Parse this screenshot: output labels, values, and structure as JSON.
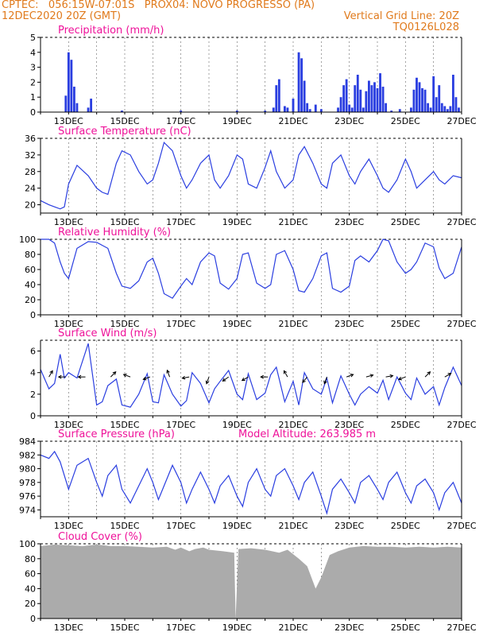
{
  "header": {
    "line1_left": "CPTEC:   056:15W-07:01S   PROX04: NOVO PROGRESSO (PA)",
    "line2_left": "12DEC2020 20Z (GMT)",
    "line2_right": "Vertical Grid Line: 20Z",
    "line3_right": "TQ0126L028"
  },
  "colors": {
    "header": "#e07a1c",
    "title": "#ee1199",
    "series": "#2a3ee0",
    "cloud": "#ababab",
    "arrow": "#000000"
  },
  "chart_data": [
    {
      "type": "bar",
      "title": "Precipitation (mm/h)",
      "xlim": [
        0,
        15
      ],
      "ylim": [
        0,
        5
      ],
      "yticks": [
        0,
        1,
        2,
        3,
        4,
        5
      ],
      "xtick_labels": [
        "13DEC",
        "15DEC",
        "17DEC",
        "19DEC",
        "21DEC",
        "23DEC",
        "25DEC",
        "27DEC"
      ],
      "x": [
        0.9,
        1.0,
        1.1,
        1.2,
        1.3,
        1.7,
        1.8,
        2.9,
        5.0,
        7.0,
        8.0,
        8.3,
        8.4,
        8.5,
        8.7,
        8.8,
        9.0,
        9.2,
        9.3,
        9.4,
        9.5,
        9.6,
        9.8,
        10.0,
        10.6,
        10.7,
        10.8,
        10.9,
        11.0,
        11.1,
        11.2,
        11.3,
        11.4,
        11.5,
        11.6,
        11.7,
        11.8,
        11.9,
        12.0,
        12.1,
        12.2,
        12.3,
        12.5,
        12.8,
        13.2,
        13.3,
        13.4,
        13.5,
        13.6,
        13.7,
        13.8,
        13.9,
        14.0,
        14.1,
        14.2,
        14.3,
        14.4,
        14.5,
        14.6,
        14.7,
        14.8,
        14.9
      ],
      "values": [
        1.1,
        4.0,
        3.5,
        1.7,
        0.6,
        0.3,
        0.9,
        0.1,
        0.1,
        0.1,
        0.1,
        0.3,
        1.8,
        2.2,
        0.4,
        0.3,
        0.9,
        4.0,
        3.6,
        2.1,
        0.6,
        0.2,
        0.5,
        0.2,
        0.3,
        1.0,
        1.8,
        2.2,
        0.5,
        0.3,
        1.8,
        2.5,
        1.5,
        0.3,
        1.4,
        2.1,
        1.8,
        2.0,
        1.6,
        2.6,
        1.7,
        0.6,
        0.1,
        0.2,
        0.3,
        1.5,
        2.3,
        2.0,
        1.6,
        1.5,
        0.6,
        0.3,
        2.4,
        1.0,
        1.8,
        0.6,
        0.4,
        0.2,
        0.4,
        2.5,
        1.0,
        0.3
      ]
    },
    {
      "type": "line",
      "title": "Surface Temperature (nC)",
      "xlim": [
        0,
        15
      ],
      "ylim": [
        18,
        36
      ],
      "yticks": [
        20,
        24,
        28,
        32,
        36
      ],
      "xtick_labels": [
        "13DEC",
        "15DEC",
        "17DEC",
        "19DEC",
        "21DEC",
        "23DEC",
        "25DEC",
        "27DEC"
      ],
      "x": [
        0,
        0.3,
        0.5,
        0.7,
        0.85,
        1.0,
        1.3,
        1.7,
        2.0,
        2.2,
        2.4,
        2.7,
        2.9,
        3.2,
        3.5,
        3.8,
        4.0,
        4.2,
        4.4,
        4.7,
        5.0,
        5.2,
        5.4,
        5.7,
        6.0,
        6.2,
        6.4,
        6.7,
        7.0,
        7.2,
        7.4,
        7.7,
        8.0,
        8.2,
        8.4,
        8.7,
        9.0,
        9.2,
        9.4,
        9.7,
        10.0,
        10.2,
        10.4,
        10.7,
        11.0,
        11.2,
        11.4,
        11.7,
        12.0,
        12.2,
        12.4,
        12.7,
        13.0,
        13.2,
        13.4,
        13.7,
        14.0,
        14.2,
        14.4,
        14.7,
        15.0
      ],
      "values": [
        21,
        20,
        19.5,
        19,
        19.5,
        25,
        29.5,
        27,
        24,
        23,
        22.5,
        30,
        33,
        32,
        28,
        25,
        26,
        30,
        35,
        33,
        27,
        24,
        26,
        30,
        32,
        26,
        24,
        27,
        32,
        31,
        25,
        24,
        29,
        33,
        28,
        24,
        26,
        32,
        34,
        30,
        25,
        24,
        30,
        32,
        27,
        25,
        28,
        31,
        27,
        24,
        23,
        26,
        31,
        28,
        24,
        26,
        28,
        26,
        25,
        27,
        26.5
      ]
    },
    {
      "type": "line",
      "title": "Relative Humidity (%)",
      "xlim": [
        0,
        15
      ],
      "ylim": [
        0,
        100
      ],
      "yticks": [
        0,
        20,
        40,
        60,
        80,
        100
      ],
      "xtick_labels": [
        "13DEC",
        "15DEC",
        "17DEC",
        "19DEC",
        "21DEC",
        "23DEC",
        "25DEC",
        "27DEC"
      ],
      "x": [
        0,
        0.3,
        0.5,
        0.7,
        0.85,
        1.0,
        1.3,
        1.7,
        2.0,
        2.2,
        2.4,
        2.7,
        2.9,
        3.2,
        3.5,
        3.8,
        4.0,
        4.2,
        4.4,
        4.7,
        5.0,
        5.2,
        5.4,
        5.7,
        6.0,
        6.2,
        6.4,
        6.7,
        7.0,
        7.2,
        7.4,
        7.7,
        8.0,
        8.2,
        8.4,
        8.7,
        9.0,
        9.2,
        9.4,
        9.7,
        10.0,
        10.2,
        10.4,
        10.7,
        11.0,
        11.2,
        11.4,
        11.7,
        12.0,
        12.2,
        12.4,
        12.7,
        13.0,
        13.2,
        13.4,
        13.7,
        14.0,
        14.2,
        14.4,
        14.7,
        15.0
      ],
      "values": [
        100,
        100,
        95,
        70,
        55,
        48,
        88,
        97,
        96,
        92,
        88,
        55,
        38,
        35,
        45,
        70,
        75,
        55,
        28,
        22,
        38,
        48,
        40,
        70,
        82,
        78,
        42,
        34,
        48,
        80,
        82,
        42,
        35,
        40,
        80,
        85,
        60,
        32,
        30,
        48,
        78,
        82,
        35,
        30,
        38,
        72,
        78,
        70,
        85,
        100,
        98,
        70,
        55,
        60,
        70,
        95,
        90,
        62,
        48,
        55,
        90
      ]
    },
    {
      "type": "line",
      "title": "Surface Wind (m/s)",
      "xlim": [
        0,
        15
      ],
      "ylim": [
        0,
        7
      ],
      "yticks": [
        0,
        2,
        4,
        6
      ],
      "xtick_labels": [
        "13DEC",
        "15DEC",
        "17DEC",
        "19DEC",
        "21DEC",
        "23DEC",
        "25DEC",
        "27DEC"
      ],
      "x": [
        0,
        0.3,
        0.5,
        0.7,
        0.85,
        1.0,
        1.3,
        1.7,
        2.0,
        2.2,
        2.4,
        2.7,
        2.9,
        3.2,
        3.5,
        3.8,
        4.0,
        4.2,
        4.4,
        4.7,
        5.0,
        5.2,
        5.4,
        5.7,
        6.0,
        6.2,
        6.4,
        6.7,
        7.0,
        7.2,
        7.4,
        7.7,
        8.0,
        8.2,
        8.4,
        8.7,
        9.0,
        9.2,
        9.4,
        9.7,
        10.0,
        10.2,
        10.4,
        10.7,
        11.0,
        11.2,
        11.4,
        11.7,
        12.0,
        12.2,
        12.4,
        12.7,
        13.0,
        13.2,
        13.4,
        13.7,
        14.0,
        14.2,
        14.4,
        14.7,
        15.0
      ],
      "values": [
        4.3,
        2.5,
        3,
        5.7,
        3.5,
        4,
        3.5,
        6.7,
        1,
        1.3,
        2.8,
        3.4,
        1,
        0.8,
        2,
        3.9,
        1.3,
        1.2,
        3.8,
        2,
        0.9,
        1.4,
        4,
        3,
        1.2,
        2.5,
        3.2,
        4.2,
        2,
        1.5,
        3.9,
        1.5,
        2.1,
        3.8,
        4.5,
        1.3,
        3.2,
        1,
        4,
        2.5,
        2,
        3.5,
        1.2,
        3.7,
        2,
        1,
        2,
        2.7,
        2.1,
        3.3,
        1.5,
        3.6,
        2.1,
        1.5,
        3.5,
        2,
        2.7,
        1,
        2.6,
        4.5,
        2.8
      ],
      "arrows_x": [
        0.3,
        0.9,
        1.6,
        2.5,
        3.2,
        3.9,
        4.6,
        5.3,
        6.0,
        6.7,
        7.4,
        8.1,
        8.8,
        9.5,
        10.2,
        10.9,
        11.6,
        12.3,
        13.0,
        13.7,
        14.4
      ],
      "arrows_direction_deg": [
        60,
        180,
        180,
        45,
        160,
        200,
        110,
        190,
        250,
        215,
        210,
        180,
        120,
        230,
        250,
        20,
        15,
        10,
        200,
        45,
        30
      ]
    },
    {
      "type": "line",
      "title": "Surface Pressure (hPa)",
      "annotation": "Model Altitude: 263.985 m",
      "xlim": [
        0,
        15
      ],
      "ylim": [
        973,
        984
      ],
      "yticks": [
        974,
        976,
        978,
        980,
        982,
        984
      ],
      "xtick_labels": [
        "13DEC",
        "15DEC",
        "17DEC",
        "19DEC",
        "21DEC",
        "23DEC",
        "25DEC",
        "27DEC"
      ],
      "x": [
        0,
        0.3,
        0.5,
        0.7,
        0.85,
        1.0,
        1.3,
        1.7,
        2.0,
        2.2,
        2.4,
        2.7,
        2.9,
        3.2,
        3.5,
        3.8,
        4.0,
        4.2,
        4.4,
        4.7,
        5.0,
        5.2,
        5.4,
        5.7,
        6.0,
        6.2,
        6.4,
        6.7,
        7.0,
        7.2,
        7.4,
        7.7,
        8.0,
        8.2,
        8.4,
        8.7,
        9.0,
        9.2,
        9.4,
        9.7,
        10.0,
        10.2,
        10.4,
        10.7,
        11.0,
        11.2,
        11.4,
        11.7,
        12.0,
        12.2,
        12.4,
        12.7,
        13.0,
        13.2,
        13.4,
        13.7,
        14.0,
        14.2,
        14.4,
        14.7,
        15.0
      ],
      "values": [
        982,
        981.5,
        982.5,
        981,
        979,
        977,
        980.5,
        981.5,
        978,
        976,
        979,
        980.5,
        977,
        975,
        977.5,
        980,
        978,
        975.5,
        977.5,
        980.5,
        978,
        975,
        977,
        979.5,
        977,
        975,
        977.5,
        979,
        976,
        974.5,
        978,
        980,
        977,
        976,
        979,
        980,
        977.5,
        975.5,
        978,
        979.5,
        976,
        973.5,
        977,
        978.5,
        976.5,
        975,
        978,
        979,
        977,
        975.5,
        978,
        979.5,
        976.5,
        975,
        977.5,
        978.5,
        976.5,
        974,
        976.5,
        978,
        975
      ]
    },
    {
      "type": "area",
      "title": "Cloud Cover (%)",
      "xlim": [
        0,
        15
      ],
      "ylim": [
        0,
        100
      ],
      "yticks": [
        0,
        20,
        40,
        60,
        80,
        100
      ],
      "xtick_labels": [
        "13DEC",
        "15DEC",
        "17DEC",
        "19DEC",
        "21DEC",
        "23DEC",
        "25DEC",
        "27DEC"
      ],
      "x": [
        0,
        0.5,
        1.0,
        1.5,
        2.0,
        2.5,
        3.0,
        3.5,
        4.0,
        4.5,
        4.8,
        5.0,
        5.3,
        5.5,
        5.8,
        6.0,
        6.5,
        6.9,
        6.95,
        7.05,
        7.5,
        8.0,
        8.5,
        8.8,
        9.2,
        9.5,
        9.8,
        10.0,
        10.3,
        10.6,
        11.0,
        11.5,
        12.0,
        12.5,
        13.0,
        13.5,
        14.0,
        14.5,
        15.0
      ],
      "values": [
        97,
        99,
        98,
        97,
        99,
        97,
        97,
        96,
        95,
        96,
        92,
        95,
        90,
        93,
        95,
        92,
        90,
        88,
        0,
        93,
        94,
        92,
        88,
        92,
        80,
        70,
        40,
        55,
        85,
        90,
        95,
        97,
        96,
        96,
        95,
        96,
        95,
        96,
        95
      ]
    }
  ]
}
